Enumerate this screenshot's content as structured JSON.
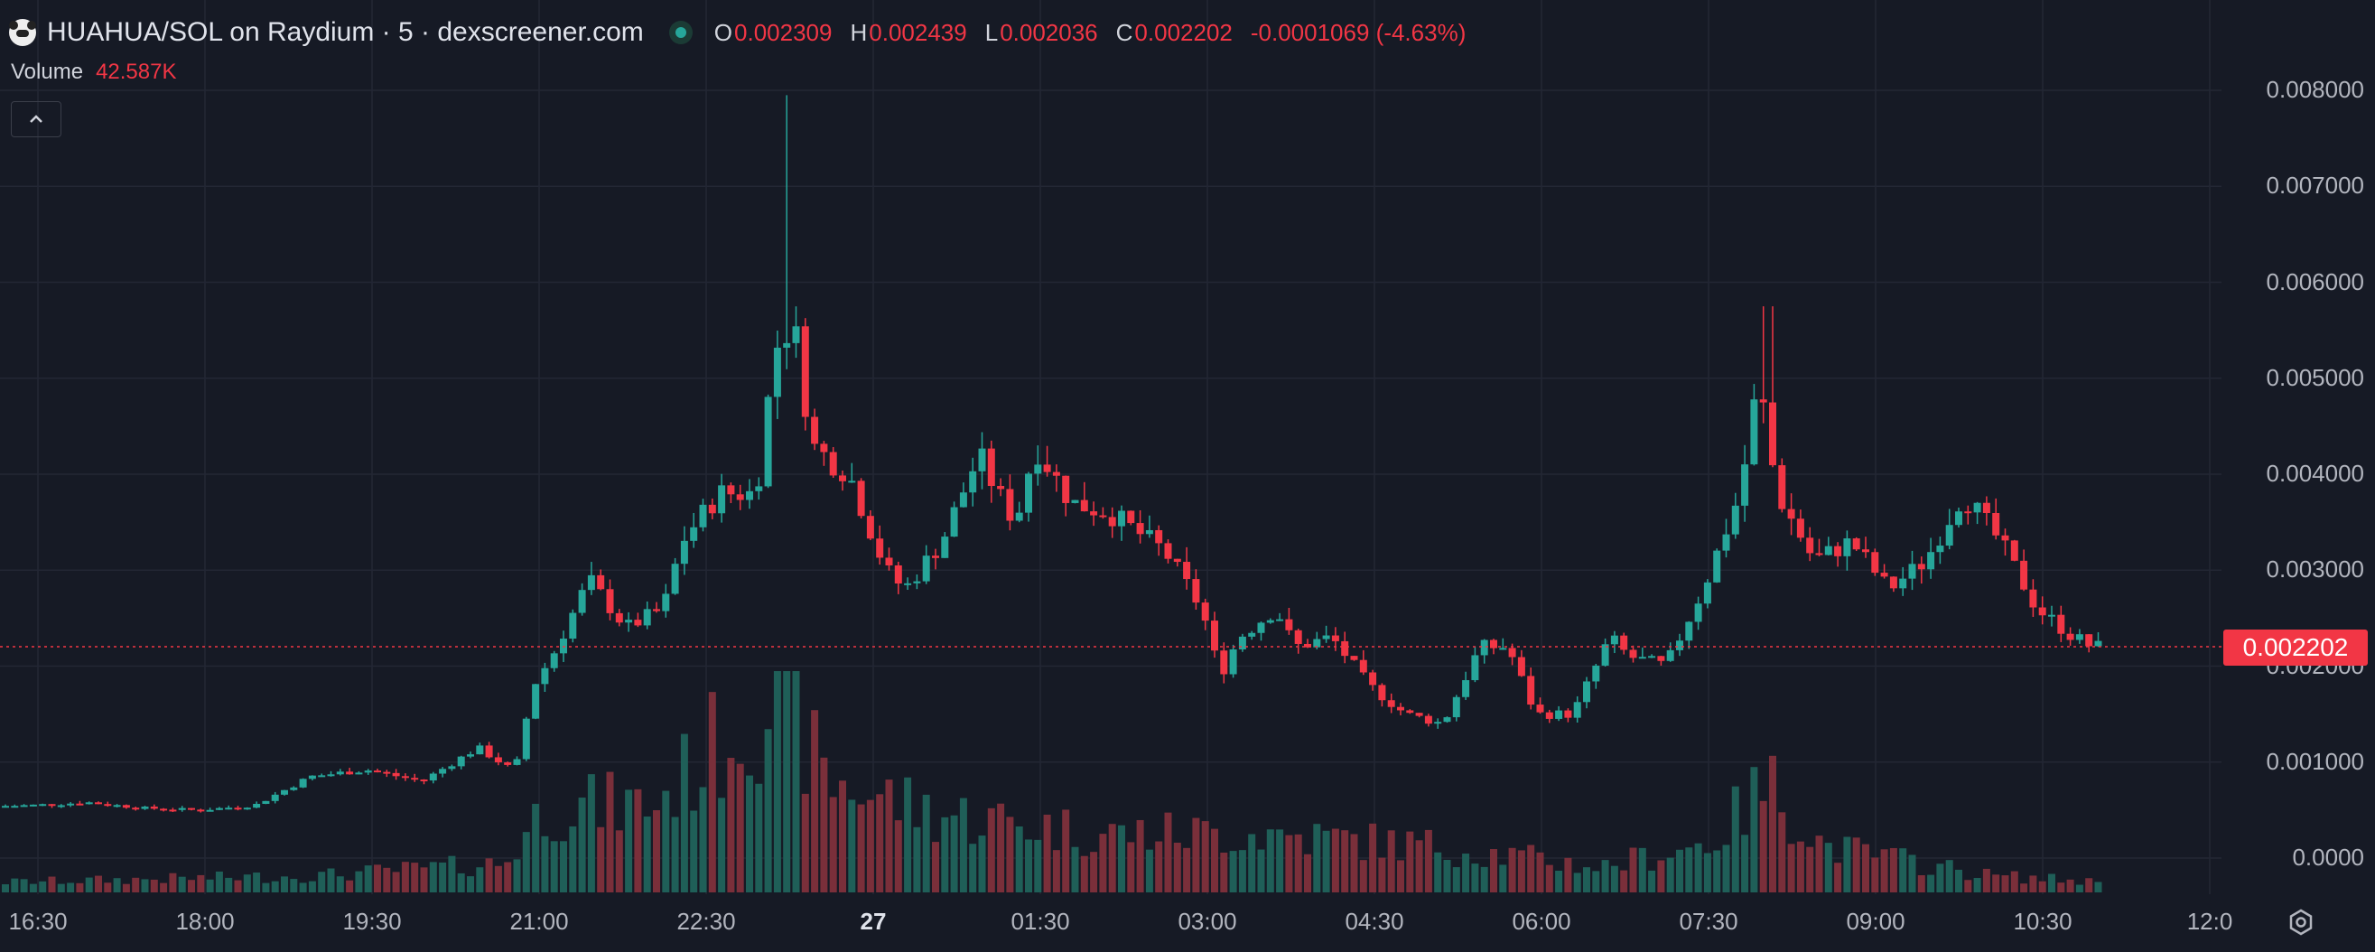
{
  "header": {
    "title": "HUAHUA/SOL on Raydium · 5 · dexscreener.com",
    "ohlc": [
      {
        "key": "O",
        "value": "0.002309"
      },
      {
        "key": "H",
        "value": "0.002439"
      },
      {
        "key": "L",
        "value": "0.002036"
      },
      {
        "key": "C",
        "value": "0.002202"
      }
    ],
    "change": "-0.0001069 (-4.63%)"
  },
  "volume": {
    "label": "Volume",
    "value": "42.587K"
  },
  "current_price": "0.002202",
  "colors": {
    "up": "#26a69a",
    "down": "#f23645",
    "background": "#161a25",
    "grid": "#232734"
  },
  "chart_data": {
    "type": "candlestick",
    "y_axis": {
      "ticks": [
        "0.008000",
        "0.007000",
        "0.006000",
        "0.005000",
        "0.004000",
        "0.003000",
        "0.002000",
        "0.001000",
        "0.0000"
      ],
      "ylim": [
        0,
        0.008
      ]
    },
    "x_axis": {
      "ticks": [
        "16:30",
        "18:00",
        "19:30",
        "21:00",
        "22:30",
        "27",
        "01:30",
        "03:00",
        "04:30",
        "06:00",
        "07:30",
        "09:00",
        "10:30",
        "12:0"
      ],
      "bold_tick": "27"
    },
    "grid": true,
    "price_anchors": [
      [
        "15:20",
        0.00052
      ],
      [
        "16:30",
        0.00055
      ],
      [
        "17:00",
        0.00058
      ],
      [
        "17:30",
        0.00052
      ],
      [
        "18:00",
        0.0005
      ],
      [
        "18:30",
        0.00055
      ],
      [
        "19:00",
        0.00085
      ],
      [
        "19:30",
        0.00092
      ],
      [
        "20:00",
        0.0008
      ],
      [
        "20:30",
        0.00115
      ],
      [
        "20:50",
        0.0009
      ],
      [
        "21:00",
        0.0018
      ],
      [
        "21:10",
        0.0021
      ],
      [
        "21:30",
        0.0029
      ],
      [
        "21:50",
        0.0024
      ],
      [
        "22:10",
        0.0026
      ],
      [
        "22:20",
        0.0033
      ],
      [
        "22:40",
        0.0038
      ],
      [
        "23:00",
        0.0038
      ],
      [
        "23:10",
        0.0053
      ],
      [
        "23:20",
        0.0056
      ],
      [
        "23:30",
        0.0043
      ],
      [
        "23:50",
        0.004
      ],
      [
        "00:10",
        0.003
      ],
      [
        "00:20",
        0.0028
      ],
      [
        "00:40",
        0.0033
      ],
      [
        "01:00",
        0.0042
      ],
      [
        "01:10",
        0.0038
      ],
      [
        "01:20",
        0.0035
      ],
      [
        "01:30",
        0.0043
      ],
      [
        "01:50",
        0.0037
      ],
      [
        "02:10",
        0.0036
      ],
      [
        "02:40",
        0.0032
      ],
      [
        "03:00",
        0.0026
      ],
      [
        "03:10",
        0.0019
      ],
      [
        "03:20",
        0.0023
      ],
      [
        "03:40",
        0.0026
      ],
      [
        "03:50",
        0.0022
      ],
      [
        "04:10",
        0.0023
      ],
      [
        "04:30",
        0.0018
      ],
      [
        "04:50",
        0.0015
      ],
      [
        "05:10",
        0.0014
      ],
      [
        "05:30",
        0.0022
      ],
      [
        "05:45",
        0.0022
      ],
      [
        "06:00",
        0.0015
      ],
      [
        "06:20",
        0.0015
      ],
      [
        "06:40",
        0.0023
      ],
      [
        "06:50",
        0.0021
      ],
      [
        "07:10",
        0.002
      ],
      [
        "07:30",
        0.0028
      ],
      [
        "07:50",
        0.0038
      ],
      [
        "08:00",
        0.005
      ],
      [
        "08:10",
        0.0038
      ],
      [
        "08:30",
        0.0031
      ],
      [
        "08:50",
        0.0033
      ],
      [
        "09:10",
        0.0028
      ],
      [
        "09:30",
        0.0031
      ],
      [
        "09:50",
        0.0038
      ],
      [
        "10:10",
        0.0033
      ],
      [
        "10:30",
        0.0026
      ],
      [
        "10:50",
        0.0023
      ],
      [
        "11:00",
        0.0022
      ]
    ],
    "spikes": [
      {
        "time": "23:10",
        "high": 0.00795
      },
      {
        "time": "08:00",
        "high": 0.00575
      }
    ],
    "volume_anchors": [
      [
        "15:20",
        0.04
      ],
      [
        "19:00",
        0.08
      ],
      [
        "20:40",
        0.14
      ],
      [
        "21:00",
        0.4
      ],
      [
        "22:00",
        0.42
      ],
      [
        "23:10",
        1.0
      ],
      [
        "23:30",
        0.55
      ],
      [
        "00:30",
        0.38
      ],
      [
        "02:00",
        0.28
      ],
      [
        "03:30",
        0.28
      ],
      [
        "05:00",
        0.22
      ],
      [
        "06:30",
        0.12
      ],
      [
        "07:30",
        0.24
      ],
      [
        "08:00",
        0.52
      ],
      [
        "08:30",
        0.22
      ],
      [
        "10:00",
        0.08
      ],
      [
        "11:00",
        0.05
      ]
    ]
  }
}
